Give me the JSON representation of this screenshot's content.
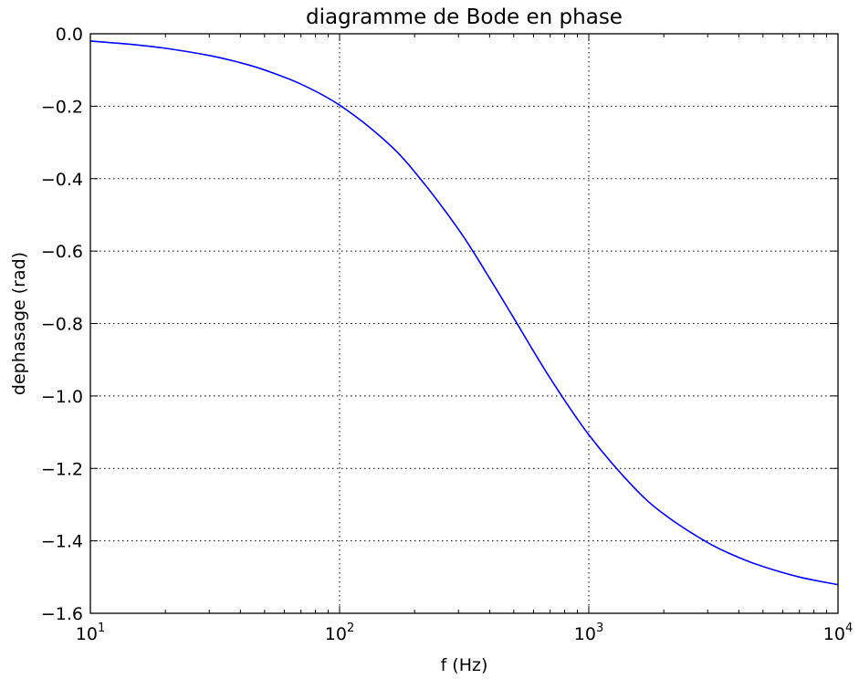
{
  "chart_data": {
    "type": "line",
    "title": "diagramme de Bode en phase",
    "xlabel": "f (Hz)",
    "ylabel": "dephasage (rad)",
    "xscale": "log",
    "xlim": [
      10,
      10000
    ],
    "ylim": [
      -1.6,
      0.0
    ],
    "grid": true,
    "x_ticks": [
      {
        "base": "10",
        "exp": "1",
        "value": 10
      },
      {
        "base": "10",
        "exp": "2",
        "value": 100
      },
      {
        "base": "10",
        "exp": "3",
        "value": 1000
      },
      {
        "base": "10",
        "exp": "4",
        "value": 10000
      }
    ],
    "y_ticks": [
      {
        "label": "0.0",
        "value": 0.0
      },
      {
        "label": "−0.2",
        "value": -0.2
      },
      {
        "label": "−0.4",
        "value": -0.4
      },
      {
        "label": "−0.6",
        "value": -0.6
      },
      {
        "label": "−0.8",
        "value": -0.8
      },
      {
        "label": "−1.0",
        "value": -1.0
      },
      {
        "label": "−1.2",
        "value": -1.2
      },
      {
        "label": "−1.4",
        "value": -1.4
      },
      {
        "label": "−1.6",
        "value": -1.6
      }
    ],
    "series": [
      {
        "color": "#0000ff",
        "x": [
          10,
          15,
          20,
          30,
          40,
          50,
          70,
          100,
          150,
          200,
          300,
          400,
          500,
          700,
          1000,
          1500,
          2000,
          3000,
          4000,
          5000,
          7000,
          10000
        ],
        "y": [
          -0.02,
          -0.03,
          -0.04,
          -0.06,
          -0.08,
          -0.1,
          -0.139,
          -0.197,
          -0.291,
          -0.381,
          -0.54,
          -0.675,
          -0.785,
          -0.951,
          -1.107,
          -1.249,
          -1.326,
          -1.405,
          -1.446,
          -1.471,
          -1.5,
          -1.521
        ]
      }
    ]
  }
}
